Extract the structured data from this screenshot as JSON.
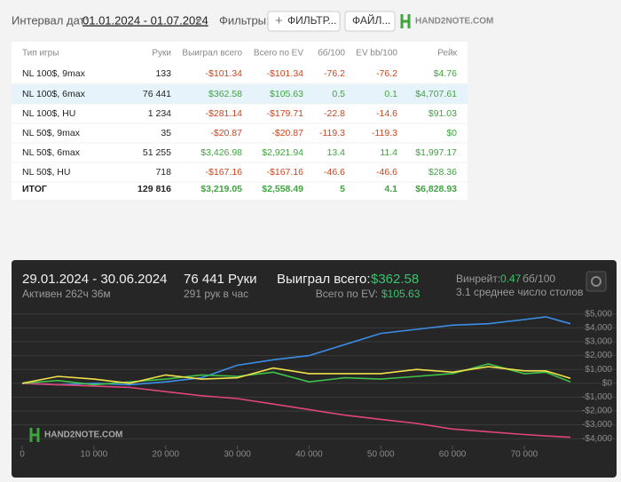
{
  "toolbar": {
    "date_label": "Интервал дат:",
    "date_range": "01.01.2024 - 01.07.2024",
    "filters_label": "Фильтры:",
    "filter_button": "ФИЛЬТР...",
    "file_button": "ФАЙЛ...",
    "logo": "HAND2NOTE.COM"
  },
  "table": {
    "header": [
      "Тип игры",
      "Руки",
      "Выиграл всего",
      "Всего по EV",
      "бб/100",
      "EV bb/100",
      "Рейк"
    ],
    "rows": [
      [
        "NL 100$, 9max",
        "133",
        "-$101.34",
        "-$101.34",
        "-76.2",
        "-76.2",
        "$4.76"
      ],
      [
        "NL 100$, 6max",
        "76 441",
        "$362.58",
        "$105.63",
        "0.5",
        "0.1",
        "$4,707.61"
      ],
      [
        "NL 100$, HU",
        "1 234",
        "-$281.14",
        "-$179.71",
        "-22.8",
        "-14.6",
        "$91.03"
      ],
      [
        "NL 50$, 9max",
        "35",
        "-$20.87",
        "-$20.87",
        "-119.3",
        "-119.3",
        "$0"
      ],
      [
        "NL 50$, 6max",
        "51 255",
        "$3,426.98",
        "$2,921.94",
        "13.4",
        "11.4",
        "$1,997.17"
      ],
      [
        "NL 50$, HU",
        "718",
        "-$167.16",
        "-$167.16",
        "-46.6",
        "-46.6",
        "$28.36"
      ],
      [
        "ИТОГ",
        "129 816",
        "$3,219.05",
        "$2,558.49",
        "5",
        "4.1",
        "$6,828.93"
      ]
    ]
  },
  "stats": {
    "period": "29.01.2024 - 30.06.2024",
    "active": "Активен 262ч 36м",
    "hands": "76 441 Руки",
    "hands_per_hour": "291 рук в час",
    "won_label": "Выиграл всего:",
    "won_value": "$362.58",
    "ev_label": "Всего по EV:",
    "ev_value": "$105.63",
    "winrate_label": "Винрейт:",
    "winrate_value": "0.47",
    "winrate_unit": "бб/100",
    "tables": "3.1 среднее число столов",
    "watermark": "HAND2NOTE.COM"
  },
  "chart_data": {
    "type": "line",
    "x": [
      0,
      5000,
      10000,
      15000,
      20000,
      25000,
      30000,
      35000,
      40000,
      45000,
      50000,
      55000,
      60000,
      65000,
      70000,
      73000,
      76441
    ],
    "series": [
      {
        "color": "#3b8ee8",
        "values": [
          0,
          -100,
          0,
          -100,
          100,
          400,
          1300,
          1700,
          2000,
          2800,
          3600,
          3900,
          4200,
          4300,
          4600,
          4800,
          4300
        ]
      },
      {
        "color": "#e0457a",
        "values": [
          0,
          -100,
          -200,
          -300,
          -600,
          -900,
          -1100,
          -1500,
          -1900,
          -2300,
          -2600,
          -2900,
          -3300,
          -3500,
          -3700,
          -3800,
          -3900
        ]
      },
      {
        "color": "#3fc24a",
        "values": [
          0,
          200,
          -100,
          100,
          300,
          600,
          500,
          800,
          100,
          400,
          300,
          500,
          700,
          1400,
          700,
          800,
          100
        ]
      },
      {
        "color": "#f2e14a",
        "values": [
          0,
          500,
          300,
          0,
          600,
          300,
          400,
          1100,
          700,
          700,
          700,
          1000,
          800,
          1200,
          900,
          900,
          360
        ]
      }
    ],
    "xlim": [
      0,
      76441
    ],
    "xticks": [
      0,
      {
        "value": 10000,
        "label": "10 000"
      },
      {
        "value": 20000,
        "label": "20 000"
      },
      {
        "value": 30000,
        "label": "30 000"
      },
      {
        "value": 40000,
        "label": "40 000"
      },
      {
        "value": 50000,
        "label": "50 000"
      },
      {
        "value": 60000,
        "label": "60 000"
      },
      {
        "value": 70000,
        "label": "70 000"
      }
    ],
    "ylim": [
      -4500,
      5500
    ],
    "yticks": [
      {
        "value": 5000,
        "label": "$5,000"
      },
      {
        "value": 4000,
        "label": "$4,000"
      },
      {
        "value": 3000,
        "label": "$3,000"
      },
      {
        "value": 2000,
        "label": "$2,000"
      },
      {
        "value": 1000,
        "label": "$1,000"
      },
      {
        "value": 0,
        "label": "$0"
      },
      {
        "value": -1000,
        "label": "-$1,000"
      },
      {
        "value": -2000,
        "label": "-$2,000"
      },
      {
        "value": -3000,
        "label": "-$3,000"
      },
      {
        "value": -4000,
        "label": "-$4,000"
      }
    ],
    "grid": true
  }
}
